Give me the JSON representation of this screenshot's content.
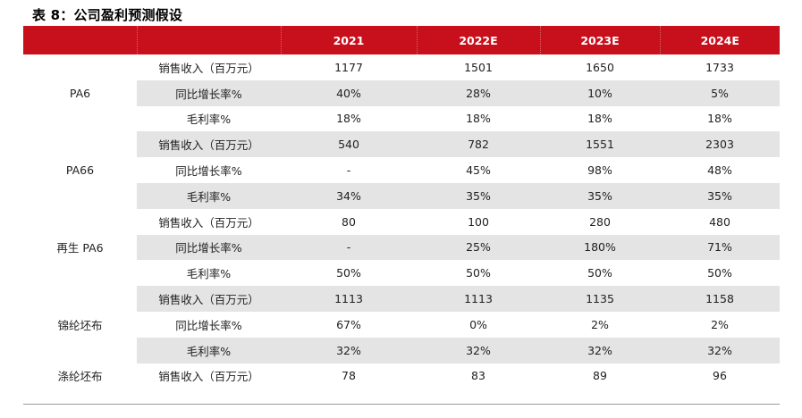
{
  "title": "表 8：公司盈利预测假设",
  "header": [
    "",
    "",
    "2021",
    "2022E",
    "2023E",
    "2024E"
  ],
  "groups": [
    {
      "name": "PA6",
      "rows": [
        {
          "metric": "销售收入（百万元）",
          "values": [
            "1177",
            "1501",
            "1650",
            "1733"
          ]
        },
        {
          "metric": "同比增长率%",
          "values": [
            "40%",
            "28%",
            "10%",
            "5%"
          ]
        },
        {
          "metric": "毛利率%",
          "values": [
            "18%",
            "18%",
            "18%",
            "18%"
          ]
        }
      ]
    },
    {
      "name": "PA66",
      "rows": [
        {
          "metric": "销售收入（百万元）",
          "values": [
            "540",
            "782",
            "1551",
            "2303"
          ]
        },
        {
          "metric": "同比增长率%",
          "values": [
            "-",
            "45%",
            "98%",
            "48%"
          ]
        },
        {
          "metric": "毛利率%",
          "values": [
            "34%",
            "35%",
            "35%",
            "35%"
          ]
        }
      ]
    },
    {
      "name": "再生 PA6",
      "rows": [
        {
          "metric": "销售收入（百万元）",
          "values": [
            "80",
            "100",
            "280",
            "480"
          ]
        },
        {
          "metric": "同比增长率%",
          "values": [
            "-",
            "25%",
            "180%",
            "71%"
          ]
        },
        {
          "metric": "毛利率%",
          "values": [
            "50%",
            "50%",
            "50%",
            "50%"
          ]
        }
      ]
    },
    {
      "name": "锦纶坯布",
      "rows": [
        {
          "metric": "销售收入（百万元）",
          "values": [
            "1113",
            "1113",
            "1135",
            "1158"
          ]
        },
        {
          "metric": "同比增长率%",
          "values": [
            "67%",
            "0%",
            "2%",
            "2%"
          ]
        },
        {
          "metric": "毛利率%",
          "values": [
            "32%",
            "32%",
            "32%",
            "32%"
          ]
        }
      ]
    },
    {
      "name": "涤纶坯布",
      "rows": [
        {
          "metric": "销售收入（百万元）",
          "values": [
            "78",
            "83",
            "89",
            "96"
          ]
        }
      ]
    }
  ],
  "colors": {
    "header_bg": "#c8101c",
    "stripe": "#e4e4e4"
  }
}
